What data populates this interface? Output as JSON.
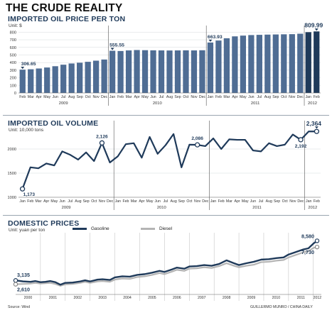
{
  "title": "THE CRUDE REALITY",
  "charts": {
    "price": {
      "title": "IMPORTED OIL PRICE PER TON",
      "unit": "Unit: $"
    },
    "volume": {
      "title": "IMPORTED OIL VOLUME",
      "unit": "Unit: 10,000 tons"
    },
    "domestic": {
      "title": "DOMESTIC PRICES",
      "unit": "Unit: yuan per ton"
    }
  },
  "footer": {
    "source": "Source: Wind",
    "credit": "GUILLERMO MUNRO / CHINA DAILY"
  },
  "chart_data": [
    {
      "type": "bar",
      "title": "IMPORTED OIL PRICE PER TON",
      "ylabel": "Unit: $",
      "ylim": [
        0,
        850
      ],
      "yticks": [
        0,
        100,
        200,
        300,
        400,
        500,
        600,
        700,
        800
      ],
      "categories": [
        "Feb",
        "Mar",
        "Apr",
        "May",
        "Jun",
        "Jul",
        "Aug",
        "Sep",
        "Oct",
        "Nov",
        "Dec",
        "Jan",
        "Feb",
        "Mar",
        "Apr",
        "May",
        "Jun",
        "Jul",
        "Aug",
        "Sep",
        "Oct",
        "Nov",
        "Dec",
        "Jan",
        "Feb",
        "Mar",
        "Apr",
        "May",
        "Jun",
        "Jul",
        "Aug",
        "Sep",
        "Oct",
        "Nov",
        "Dec",
        "Jan",
        "Feb"
      ],
      "groups": [
        {
          "label": "2009",
          "start": 0,
          "end": 10
        },
        {
          "label": "2010",
          "start": 11,
          "end": 22
        },
        {
          "label": "2011",
          "start": 23,
          "end": 34
        },
        {
          "label": "2012",
          "start": 35,
          "end": 36
        }
      ],
      "values": [
        306.65,
        312,
        322,
        335,
        352,
        372,
        388,
        398,
        410,
        425,
        440,
        555.55,
        552,
        560,
        565,
        563,
        561,
        560,
        559,
        560,
        561,
        560,
        562,
        663.93,
        690,
        720,
        745,
        755,
        762,
        765,
        768,
        770,
        772,
        774,
        780,
        800,
        809.99
      ],
      "annotations": [
        {
          "index": 0,
          "text": "306.65"
        },
        {
          "index": 11,
          "text": "555.55"
        },
        {
          "index": 23,
          "text": "663.93"
        },
        {
          "index": 36,
          "text": "809.99"
        }
      ],
      "colors": {
        "bar": "#4f6d94",
        "bar_2012": "#1f3a5a"
      },
      "grid": true
    },
    {
      "type": "line",
      "title": "IMPORTED OIL VOLUME",
      "ylabel": "Unit: 10,000 tons",
      "ylim": [
        1000,
        2500
      ],
      "yticks": [
        1000,
        1500,
        2000
      ],
      "categories": [
        "Jan",
        "Feb",
        "Mar",
        "Apr",
        "May",
        "Jun",
        "Jul",
        "Aug",
        "Sep",
        "Oct",
        "Nov",
        "Dec",
        "Jan",
        "Feb",
        "Mar",
        "Apr",
        "May",
        "Jun",
        "Jul",
        "Aug",
        "Sep",
        "Oct",
        "Nov",
        "Dec",
        "Jan",
        "Feb",
        "Mar",
        "Apr",
        "May",
        "Jun",
        "Jul",
        "Aug",
        "Sep",
        "Oct",
        "Nov",
        "Dec",
        "Jan",
        "Feb"
      ],
      "groups": [
        {
          "label": "2009",
          "start": 0,
          "end": 11
        },
        {
          "label": "2010",
          "start": 12,
          "end": 23
        },
        {
          "label": "2011",
          "start": 24,
          "end": 35
        },
        {
          "label": "2012",
          "start": 36,
          "end": 37
        }
      ],
      "values": [
        1173,
        1620,
        1600,
        1700,
        1660,
        1950,
        1880,
        1780,
        1930,
        1750,
        2126,
        1720,
        1850,
        2100,
        2120,
        1820,
        2250,
        1900,
        2080,
        2310,
        1620,
        2090,
        2086,
        2060,
        2220,
        2000,
        2200,
        2190,
        2190,
        1970,
        1950,
        2120,
        2060,
        2090,
        2300,
        2192,
        2364,
        2364
      ],
      "annotations": [
        {
          "index": 0,
          "text": "1,173"
        },
        {
          "index": 10,
          "text": "2,126"
        },
        {
          "index": 22,
          "text": "2,086"
        },
        {
          "index": 35,
          "text": "2,192"
        },
        {
          "index": 37,
          "text": "2,364"
        }
      ],
      "colors": {
        "line": "#1f3a5a"
      },
      "grid": true
    },
    {
      "type": "line",
      "title": "DOMESTIC PRICES",
      "ylabel": "Unit: yuan per ton",
      "ylim": [
        1500,
        9500
      ],
      "legend": "top",
      "x_labels": [
        "2000",
        "2001",
        "2002",
        "2003",
        "2004",
        "2005",
        "2006",
        "2007",
        "2008",
        "2009",
        "2010",
        "2011",
        "2012"
      ],
      "series": [
        {
          "name": "Gasoline",
          "color": "#1f3a5a",
          "x": [
            2000.0,
            2000.3,
            2000.6,
            2000.8,
            2001.0,
            2001.2,
            2001.4,
            2001.6,
            2001.8,
            2002.0,
            2002.3,
            2002.6,
            2002.8,
            2003.0,
            2003.3,
            2003.5,
            2003.8,
            2004.0,
            2004.3,
            2004.6,
            2004.9,
            2005.2,
            2005.5,
            2005.8,
            2006.0,
            2006.3,
            2006.5,
            2006.8,
            2007.0,
            2007.3,
            2007.6,
            2007.9,
            2008.2,
            2008.5,
            2008.8,
            2009.0,
            2009.3,
            2009.6,
            2009.9,
            2010.2,
            2010.5,
            2010.8,
            2011.0,
            2011.3,
            2011.6,
            2011.8,
            2012.0,
            2012.15
          ],
          "values": [
            3135,
            3000,
            2950,
            3050,
            2900,
            2950,
            3050,
            2900,
            2550,
            2800,
            2850,
            3000,
            3150,
            3000,
            3250,
            3300,
            3200,
            3550,
            3700,
            3650,
            3900,
            4000,
            4200,
            4450,
            4300,
            4650,
            4900,
            4750,
            5050,
            5100,
            5250,
            5150,
            5400,
            5900,
            5500,
            5250,
            5500,
            5700,
            6000,
            6050,
            6200,
            6300,
            6700,
            7050,
            7400,
            7550,
            8200,
            8580
          ]
        },
        {
          "name": "Diesel",
          "color": "#b4b4b4",
          "x": [
            2000.0,
            2000.3,
            2000.6,
            2000.8,
            2001.0,
            2001.2,
            2001.4,
            2001.6,
            2001.8,
            2002.0,
            2002.3,
            2002.6,
            2002.8,
            2003.0,
            2003.3,
            2003.5,
            2003.8,
            2004.0,
            2004.3,
            2004.6,
            2004.9,
            2005.2,
            2005.5,
            2005.8,
            2006.0,
            2006.3,
            2006.5,
            2006.8,
            2007.0,
            2007.3,
            2007.6,
            2007.9,
            2008.2,
            2008.5,
            2008.8,
            2009.0,
            2009.3,
            2009.6,
            2009.9,
            2010.2,
            2010.5,
            2010.8,
            2011.0,
            2011.3,
            2011.6,
            2011.8,
            2012.0,
            2012.15
          ],
          "values": [
            2610,
            2650,
            2700,
            2800,
            2700,
            2750,
            2800,
            2650,
            2400,
            2600,
            2650,
            2800,
            2950,
            2800,
            3000,
            3050,
            2950,
            3250,
            3400,
            3350,
            3600,
            3700,
            3900,
            4150,
            4000,
            4350,
            4600,
            4450,
            4750,
            4800,
            4950,
            4850,
            5100,
            5500,
            5150,
            4950,
            5150,
            5300,
            5650,
            5700,
            5850,
            5950,
            6300,
            6650,
            7000,
            7150,
            7600,
            7730
          ]
        }
      ],
      "annotations": [
        {
          "series": 0,
          "index": 0,
          "text": "3,135"
        },
        {
          "series": 1,
          "index": 0,
          "text": "2,610"
        },
        {
          "series": 0,
          "index": 47,
          "text": "8,580"
        },
        {
          "series": 1,
          "index": 47,
          "text": "7,730"
        }
      ],
      "grid": false
    }
  ]
}
